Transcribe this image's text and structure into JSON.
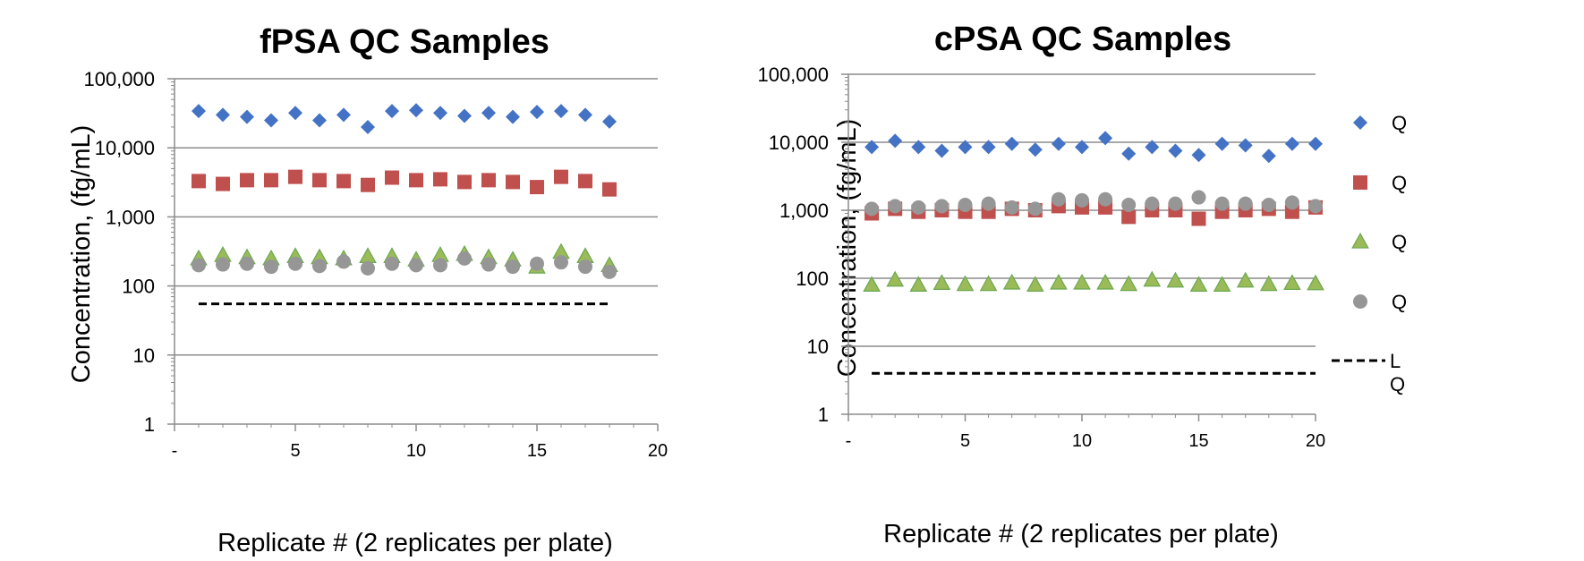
{
  "chart_data": [
    {
      "type": "scatter",
      "title": "fPSA QC Samples",
      "xlabel": "Replicate # (2 replicates per plate)",
      "ylabel": "Concentration, (fg/mL)",
      "yscale": "log",
      "ylim": [
        1,
        100000
      ],
      "xlim": [
        0,
        20
      ],
      "y_tick_labels": [
        "1",
        "10",
        "100",
        "1,000",
        "10,000",
        "100,000"
      ],
      "x_tick_labels": [
        "-",
        "5",
        "10",
        "15",
        "20"
      ],
      "grid": true,
      "x": [
        1,
        2,
        3,
        4,
        5,
        6,
        7,
        8,
        9,
        10,
        11,
        12,
        13,
        14,
        15,
        16,
        17,
        18
      ],
      "series": [
        {
          "marker": "diamond",
          "color": "#4472C4",
          "values": [
            34000,
            30000,
            28000,
            25000,
            32000,
            25000,
            30000,
            20000,
            34000,
            35000,
            32000,
            29000,
            32000,
            28000,
            33000,
            34000,
            30000,
            24000
          ]
        },
        {
          "marker": "square",
          "color": "#C0504D",
          "values": [
            3300,
            3000,
            3400,
            3400,
            3800,
            3400,
            3300,
            2900,
            3700,
            3400,
            3500,
            3200,
            3400,
            3200,
            2700,
            3800,
            3300,
            2500
          ]
        },
        {
          "marker": "triangle",
          "color": "#9BBB59",
          "values": [
            250,
            280,
            260,
            250,
            270,
            260,
            250,
            270,
            270,
            240,
            280,
            290,
            260,
            240,
            190,
            310,
            270,
            200
          ]
        },
        {
          "marker": "circle",
          "color": "#969696",
          "values": [
            200,
            205,
            210,
            190,
            210,
            195,
            225,
            180,
            210,
            200,
            200,
            250,
            205,
            190,
            210,
            220,
            190,
            160
          ]
        }
      ],
      "reference_line": {
        "style": "dashed",
        "color": "#000000",
        "value": 55,
        "x_range": [
          1,
          18
        ]
      }
    },
    {
      "type": "scatter",
      "title": "cPSA QC Samples",
      "xlabel": "Replicate # (2 replicates per plate)",
      "ylabel": "Concentration, (fg/mL)",
      "yscale": "log",
      "ylim": [
        1,
        100000
      ],
      "xlim": [
        0,
        20
      ],
      "y_tick_labels": [
        "1",
        "10",
        "100",
        "1,000",
        "10,000",
        "100,000"
      ],
      "x_tick_labels": [
        "-",
        "5",
        "10",
        "15",
        "20"
      ],
      "grid": true,
      "legend_position": "right",
      "x": [
        1,
        2,
        3,
        4,
        5,
        6,
        7,
        8,
        9,
        10,
        11,
        12,
        13,
        14,
        15,
        16,
        17,
        18,
        19,
        20
      ],
      "series": [
        {
          "name": "Q",
          "marker": "diamond",
          "color": "#4472C4",
          "values": [
            8500,
            10500,
            8500,
            7500,
            8500,
            8500,
            9500,
            7800,
            9500,
            8500,
            11500,
            6800,
            8500,
            7500,
            6500,
            9500,
            9000,
            6300,
            9500,
            9500
          ]
        },
        {
          "name": "Q",
          "marker": "square",
          "color": "#C0504D",
          "values": [
            900,
            1050,
            950,
            1000,
            950,
            950,
            1050,
            1000,
            1150,
            1100,
            1100,
            800,
            1000,
            1000,
            750,
            950,
            1000,
            1050,
            950,
            1100
          ]
        },
        {
          "name": "Q",
          "marker": "triangle",
          "color": "#9BBB59",
          "values": [
            80,
            95,
            80,
            85,
            82,
            82,
            86,
            80,
            86,
            86,
            86,
            82,
            95,
            92,
            80,
            80,
            92,
            82,
            85,
            84
          ]
        },
        {
          "name": "Q",
          "marker": "circle",
          "color": "#969696",
          "values": [
            1050,
            1150,
            1100,
            1150,
            1200,
            1250,
            1100,
            1050,
            1450,
            1400,
            1450,
            1200,
            1250,
            1250,
            1550,
            1250,
            1250,
            1200,
            1300,
            1150
          ]
        }
      ],
      "reference_line": {
        "name": "L Q",
        "style": "dashed",
        "color": "#000000",
        "value": 4,
        "x_range": [
          1,
          20
        ]
      }
    }
  ]
}
